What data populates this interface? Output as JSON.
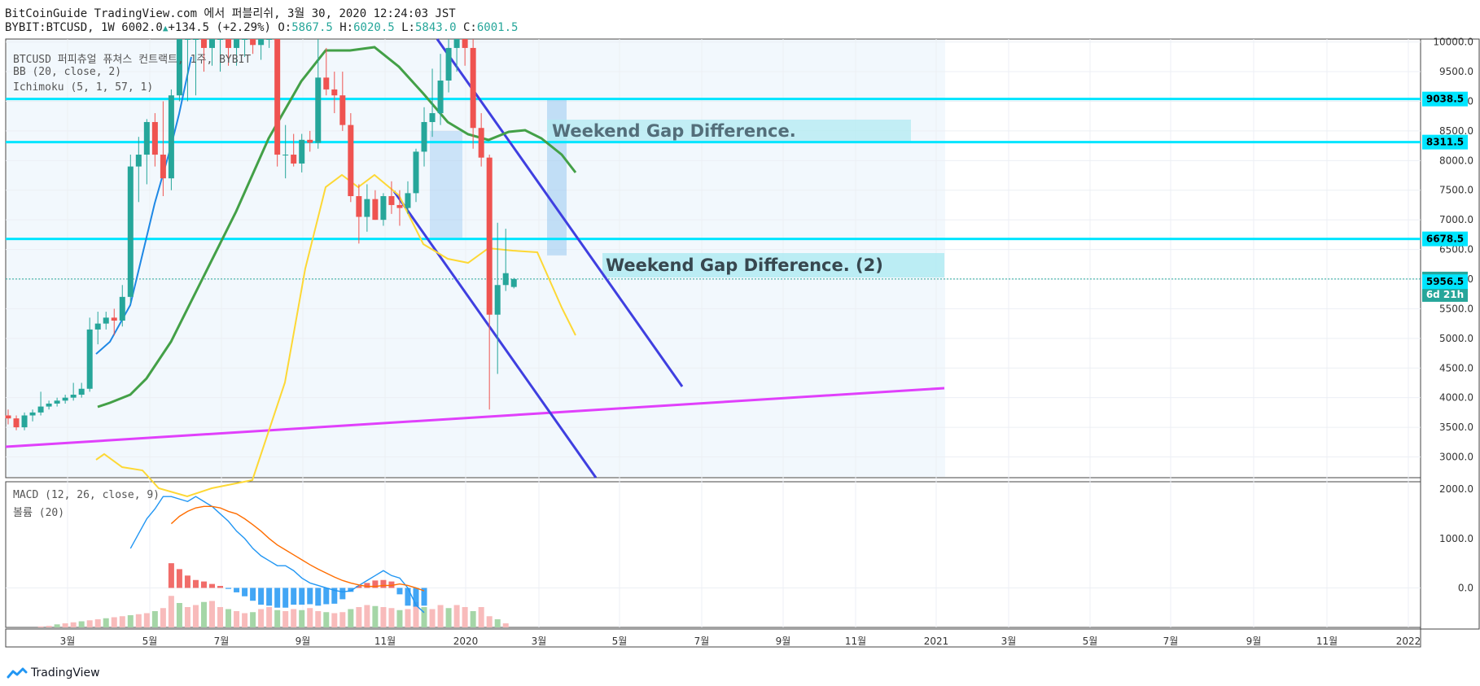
{
  "header": {
    "line1": "BitCoinGuide TradingView.com 에서 퍼블리쉬, 3월 30, 2020 12:24:03 JST",
    "symbol": "BYBIT:BTCUSD, 1W 6002.0",
    "change": "+134.5 (+2.29%)",
    "o_label": "O:",
    "o_val": "5867.5",
    "h_label": "H:",
    "h_val": "6020.5",
    "l_label": "L:",
    "l_val": "5843.0",
    "c_label": "C:",
    "c_val": "6001.5"
  },
  "legend": {
    "title": "BTCUSD 퍼피츄얼 퓨쳐스 컨트랙트, 1주, BYBIT",
    "bb": "BB (20, close, 2)",
    "ichimoku": "Ichimoku (5, 1, 57, 1)",
    "macd": "MACD (12, 26, close, 9)",
    "volume": "볼륨 (20)"
  },
  "annotations": {
    "gap1": "Weekend Gap Difference.",
    "gap2": "Weekend Gap Difference. (2)"
  },
  "footer": {
    "brand": "TradingView"
  },
  "colors": {
    "up": "#26a69a",
    "down": "#ef5350",
    "bb_mid": "#43a047",
    "bb_band": "#1e88e5",
    "ichimoku": "#fdd835",
    "channel": "#3f3fe0",
    "trend": "#e040fb",
    "level": "#00e5ff",
    "macd": "#2196f3",
    "signal": "#ff6d00"
  },
  "chart_data": {
    "type": "candlestick",
    "y_axis_ticks": [
      "10000.0",
      "9500.0",
      "9000.0",
      "8500.0",
      "8000.0",
      "7500.0",
      "7000.0",
      "6500.0",
      "6000.0",
      "5500.0",
      "5000.0",
      "4500.0",
      "4000.0",
      "3500.0",
      "3000.0"
    ],
    "ylim": [
      2650,
      10050
    ],
    "x_axis_ticks": [
      "3월",
      "5월",
      "7월",
      "9월",
      "11월",
      "2020",
      "3월",
      "5월",
      "7월",
      "9월",
      "11월",
      "2021",
      "3월",
      "5월",
      "7월",
      "9월",
      "11월",
      "2022"
    ],
    "price_levels": [
      {
        "label": "9038.5",
        "value": 9038.5
      },
      {
        "label": "8311.5",
        "value": 8311.5
      },
      {
        "label": "6678.5",
        "value": 6678.5
      }
    ],
    "last_price": {
      "label": "6001.5",
      "value": 6001.5,
      "countdown": "6d 21h"
    },
    "bb_basis_label": {
      "label": "5956.5",
      "value": 5956.5
    },
    "candles": [
      {
        "o": 3700,
        "h": 3800,
        "l": 3550,
        "c": 3650
      },
      {
        "o": 3650,
        "h": 3700,
        "l": 3450,
        "c": 3500
      },
      {
        "o": 3500,
        "h": 3750,
        "l": 3450,
        "c": 3700
      },
      {
        "o": 3700,
        "h": 3800,
        "l": 3600,
        "c": 3750
      },
      {
        "o": 3750,
        "h": 4100,
        "l": 3700,
        "c": 3850
      },
      {
        "o": 3850,
        "h": 3950,
        "l": 3800,
        "c": 3900
      },
      {
        "o": 3900,
        "h": 4000,
        "l": 3850,
        "c": 3950
      },
      {
        "o": 3950,
        "h": 4050,
        "l": 3900,
        "c": 4000
      },
      {
        "o": 4000,
        "h": 4250,
        "l": 3950,
        "c": 4050
      },
      {
        "o": 4050,
        "h": 4250,
        "l": 4000,
        "c": 4150
      },
      {
        "o": 4150,
        "h": 5350,
        "l": 4100,
        "c": 5150
      },
      {
        "o": 5150,
        "h": 5450,
        "l": 4900,
        "c": 5250
      },
      {
        "o": 5250,
        "h": 5450,
        "l": 5150,
        "c": 5350
      },
      {
        "o": 5350,
        "h": 5500,
        "l": 5050,
        "c": 5300
      },
      {
        "o": 5300,
        "h": 5900,
        "l": 5200,
        "c": 5700
      },
      {
        "o": 5700,
        "h": 8100,
        "l": 5600,
        "c": 7900
      },
      {
        "o": 7900,
        "h": 8400,
        "l": 7300,
        "c": 8100
      },
      {
        "o": 8100,
        "h": 8700,
        "l": 7600,
        "c": 8650
      },
      {
        "o": 8650,
        "h": 8800,
        "l": 7900,
        "c": 8100
      },
      {
        "o": 8100,
        "h": 9000,
        "l": 7400,
        "c": 7700
      },
      {
        "o": 7700,
        "h": 9200,
        "l": 7500,
        "c": 9100
      },
      {
        "o": 9100,
        "h": 10050,
        "l": 9000,
        "c": 10050
      },
      {
        "o": 10050,
        "h": 10050,
        "l": 9000,
        "c": 10050
      },
      {
        "o": 10050,
        "h": 10050,
        "l": 9100,
        "c": 10050
      },
      {
        "o": 10050,
        "h": 10050,
        "l": 9500,
        "c": 9900
      },
      {
        "o": 9900,
        "h": 10050,
        "l": 9600,
        "c": 10050
      },
      {
        "o": 10050,
        "h": 10050,
        "l": 9500,
        "c": 10050
      },
      {
        "o": 10050,
        "h": 10050,
        "l": 9600,
        "c": 9900
      },
      {
        "o": 9900,
        "h": 10050,
        "l": 9600,
        "c": 10050
      },
      {
        "o": 10050,
        "h": 10050,
        "l": 9750,
        "c": 10050
      },
      {
        "o": 10050,
        "h": 10050,
        "l": 9800,
        "c": 9950
      },
      {
        "o": 9950,
        "h": 10050,
        "l": 9700,
        "c": 10050
      },
      {
        "o": 10050,
        "h": 10050,
        "l": 9900,
        "c": 10050
      },
      {
        "o": 10050,
        "h": 10050,
        "l": 7900,
        "c": 8100
      },
      {
        "o": 8100,
        "h": 8600,
        "l": 7700,
        "c": 8100
      },
      {
        "o": 8100,
        "h": 8450,
        "l": 7900,
        "c": 7950
      },
      {
        "o": 7950,
        "h": 8450,
        "l": 7800,
        "c": 8350
      },
      {
        "o": 8350,
        "h": 8500,
        "l": 8150,
        "c": 8300
      },
      {
        "o": 8300,
        "h": 10050,
        "l": 8200,
        "c": 9400
      },
      {
        "o": 9400,
        "h": 9900,
        "l": 9100,
        "c": 9200
      },
      {
        "o": 9200,
        "h": 9500,
        "l": 8800,
        "c": 9100
      },
      {
        "o": 9100,
        "h": 9500,
        "l": 8500,
        "c": 8600
      },
      {
        "o": 8600,
        "h": 8800,
        "l": 7300,
        "c": 7400
      },
      {
        "o": 7400,
        "h": 7600,
        "l": 6600,
        "c": 7050
      },
      {
        "o": 7050,
        "h": 7600,
        "l": 6800,
        "c": 7350
      },
      {
        "o": 7350,
        "h": 7500,
        "l": 7000,
        "c": 7000
      },
      {
        "o": 7000,
        "h": 7450,
        "l": 6900,
        "c": 7400
      },
      {
        "o": 7400,
        "h": 7650,
        "l": 7100,
        "c": 7250
      },
      {
        "o": 7250,
        "h": 7500,
        "l": 6900,
        "c": 7200
      },
      {
        "o": 7200,
        "h": 7650,
        "l": 7100,
        "c": 7450
      },
      {
        "o": 7450,
        "h": 8200,
        "l": 7300,
        "c": 8150
      },
      {
        "o": 8150,
        "h": 8900,
        "l": 7900,
        "c": 8650
      },
      {
        "o": 8650,
        "h": 9550,
        "l": 8400,
        "c": 8800
      },
      {
        "o": 8800,
        "h": 9800,
        "l": 8600,
        "c": 9350
      },
      {
        "o": 9350,
        "h": 10050,
        "l": 9150,
        "c": 9900
      },
      {
        "o": 9900,
        "h": 10050,
        "l": 9500,
        "c": 10050
      },
      {
        "o": 10050,
        "h": 10050,
        "l": 9600,
        "c": 9900
      },
      {
        "o": 9900,
        "h": 10050,
        "l": 8200,
        "c": 8550
      },
      {
        "o": 8550,
        "h": 8800,
        "l": 7900,
        "c": 8050
      },
      {
        "o": 8050,
        "h": 8100,
        "l": 3800,
        "c": 5400
      },
      {
        "o": 5400,
        "h": 6950,
        "l": 4400,
        "c": 5900
      },
      {
        "o": 5900,
        "h": 6850,
        "l": 5800,
        "c": 6100
      },
      {
        "o": 5867.5,
        "h": 6020.5,
        "l": 5843,
        "c": 6001.5
      }
    ],
    "macd_axis_ticks": [
      "2000.0",
      "1000.0",
      "0.0"
    ],
    "macd_ylim": [
      -800,
      2150
    ],
    "macd_start_index": 15,
    "macd": [
      800,
      1100,
      1400,
      1600,
      1850,
      1850,
      1800,
      1750,
      1850,
      1750,
      1650,
      1500,
      1350,
      1150,
      1000,
      800,
      650,
      550,
      450,
      450,
      350,
      200,
      100,
      50,
      0,
      -50,
      -80,
      -60,
      50,
      150,
      250,
      350,
      250,
      200,
      0,
      -350,
      -500
    ],
    "signal": [
      1300,
      1450,
      1550,
      1620,
      1650,
      1650,
      1620,
      1550,
      1500,
      1400,
      1280,
      1150,
      1000,
      870,
      770,
      670,
      570,
      470,
      380,
      300,
      220,
      150,
      100,
      60,
      30,
      30,
      50,
      50,
      80,
      50,
      0,
      -60
    ],
    "signal_start_index": 20,
    "histogram_start_index": 20,
    "histogram": [
      500,
      380,
      250,
      160,
      130,
      80,
      40,
      -20,
      -90,
      -170,
      -260,
      -340,
      -360,
      -400,
      -400,
      -340,
      -340,
      -330,
      -360,
      -330,
      -320,
      -230,
      -80,
      40,
      100,
      150,
      160,
      130,
      -130,
      -360,
      -380,
      -360
    ],
    "volume": [
      0,
      0,
      0,
      0,
      10,
      15,
      30,
      40,
      50,
      60,
      70,
      80,
      90,
      100,
      110,
      120,
      130,
      140,
      160,
      190,
      310,
      240,
      200,
      220,
      250,
      260,
      200,
      180,
      160,
      140,
      150,
      180,
      200,
      170,
      160,
      180,
      170,
      190,
      160,
      150,
      140,
      150,
      180,
      200,
      220,
      210,
      200,
      190,
      170,
      180,
      250,
      200,
      180,
      220,
      190,
      220,
      200,
      160,
      200,
      110,
      80,
      40
    ]
  }
}
